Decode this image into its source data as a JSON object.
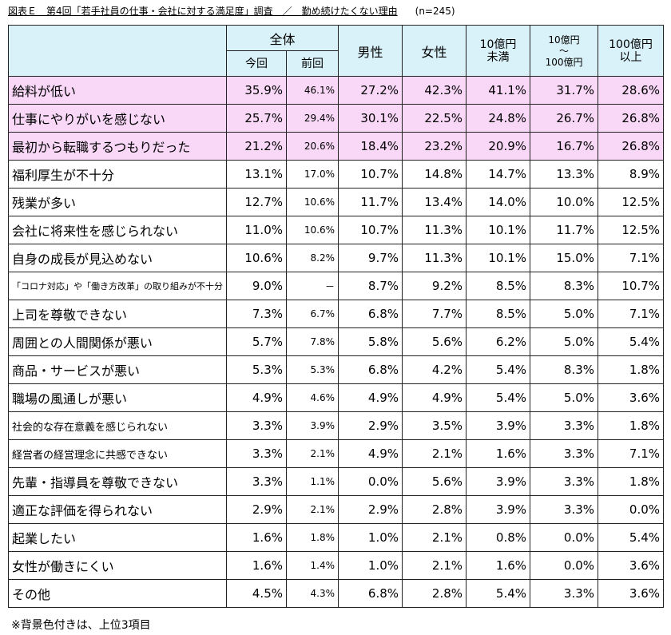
{
  "title": {
    "main": "図表Ｅ　第4回「若手社員の仕事・会社に対する満足度」調査　／　勤め続けたくない理由",
    "n": "(n=245)"
  },
  "footnote": "※背景色付きは、上位3項目",
  "chart_data": {
    "type": "table",
    "header_top": {
      "overall": "全体",
      "male": "男性",
      "female": "女性",
      "under10": [
        "10億円",
        "未満"
      ],
      "mid": [
        "10億円",
        "～",
        "100億円"
      ],
      "over100": [
        "100億円",
        "以上"
      ]
    },
    "header_sub": {
      "current": "今回",
      "previous": "前回"
    },
    "columns": [
      "今回",
      "前回",
      "男性",
      "女性",
      "10億円未満",
      "10億円～100億円",
      "100億円以上"
    ],
    "rows": [
      {
        "label": "給料が低い",
        "values": [
          "35.9%",
          "46.1%",
          "27.2%",
          "42.3%",
          "41.1%",
          "31.7%",
          "28.6%"
        ],
        "top3": true
      },
      {
        "label": "仕事にやりがいを感じない",
        "values": [
          "25.7%",
          "29.4%",
          "30.1%",
          "22.5%",
          "24.8%",
          "26.7%",
          "26.8%"
        ],
        "top3": true
      },
      {
        "label": "最初から転職するつもりだった",
        "values": [
          "21.2%",
          "20.6%",
          "18.4%",
          "23.2%",
          "20.9%",
          "16.7%",
          "26.8%"
        ],
        "top3": true
      },
      {
        "label": "福利厚生が不十分",
        "values": [
          "13.1%",
          "17.0%",
          "10.7%",
          "14.8%",
          "14.7%",
          "13.3%",
          "8.9%"
        ],
        "top3": false
      },
      {
        "label": "残業が多い",
        "values": [
          "12.7%",
          "10.6%",
          "11.7%",
          "13.4%",
          "14.0%",
          "10.0%",
          "12.5%"
        ],
        "top3": false
      },
      {
        "label": "会社に将来性を感じられない",
        "values": [
          "11.0%",
          "10.6%",
          "10.7%",
          "11.3%",
          "10.1%",
          "11.7%",
          "12.5%"
        ],
        "top3": false
      },
      {
        "label": "自身の成長が見込めない",
        "values": [
          "10.6%",
          "8.2%",
          "9.7%",
          "11.3%",
          "10.1%",
          "15.0%",
          "7.1%"
        ],
        "top3": false
      },
      {
        "label": "「コロナ対応」や「働き方改革」の取り組みが不十分",
        "values": [
          "9.0%",
          "－",
          "8.7%",
          "9.2%",
          "8.5%",
          "8.3%",
          "10.7%"
        ],
        "top3": false
      },
      {
        "label": "上司を尊敬できない",
        "values": [
          "7.3%",
          "6.7%",
          "6.8%",
          "7.7%",
          "8.5%",
          "5.0%",
          "7.1%"
        ],
        "top3": false
      },
      {
        "label": "周囲との人間関係が悪い",
        "values": [
          "5.7%",
          "7.8%",
          "5.8%",
          "5.6%",
          "6.2%",
          "5.0%",
          "5.4%"
        ],
        "top3": false
      },
      {
        "label": "商品・サービスが悪い",
        "values": [
          "5.3%",
          "5.3%",
          "6.8%",
          "4.2%",
          "5.4%",
          "8.3%",
          "1.8%"
        ],
        "top3": false
      },
      {
        "label": "職場の風通しが悪い",
        "values": [
          "4.9%",
          "4.6%",
          "4.9%",
          "4.9%",
          "5.4%",
          "5.0%",
          "3.6%"
        ],
        "top3": false
      },
      {
        "label": "社会的な存在意義を感じられない",
        "values": [
          "3.3%",
          "3.9%",
          "2.9%",
          "3.5%",
          "3.9%",
          "3.3%",
          "1.8%"
        ],
        "top3": false
      },
      {
        "label": "経営者の経営理念に共感できない",
        "values": [
          "3.3%",
          "2.1%",
          "4.9%",
          "2.1%",
          "1.6%",
          "3.3%",
          "7.1%"
        ],
        "top3": false
      },
      {
        "label": "先輩・指導員を尊敬できない",
        "values": [
          "3.3%",
          "1.1%",
          "0.0%",
          "5.6%",
          "3.9%",
          "3.3%",
          "1.8%"
        ],
        "top3": false
      },
      {
        "label": "適正な評価を得られない",
        "values": [
          "2.9%",
          "2.1%",
          "2.9%",
          "2.8%",
          "3.9%",
          "3.3%",
          "0.0%"
        ],
        "top3": false
      },
      {
        "label": "起業したい",
        "values": [
          "1.6%",
          "1.8%",
          "1.0%",
          "2.1%",
          "0.8%",
          "0.0%",
          "5.4%"
        ],
        "top3": false
      },
      {
        "label": "女性が働きにくい",
        "values": [
          "1.6%",
          "1.4%",
          "1.0%",
          "2.1%",
          "1.6%",
          "0.0%",
          "3.6%"
        ],
        "top3": false
      },
      {
        "label": "その他",
        "values": [
          "4.5%",
          "4.3%",
          "6.8%",
          "2.8%",
          "5.4%",
          "3.3%",
          "3.6%"
        ],
        "top3": false
      }
    ],
    "colors": {
      "header_bg": "#d9f1f8",
      "top3_bg": "#f8d7f7",
      "border": "#222222"
    }
  }
}
